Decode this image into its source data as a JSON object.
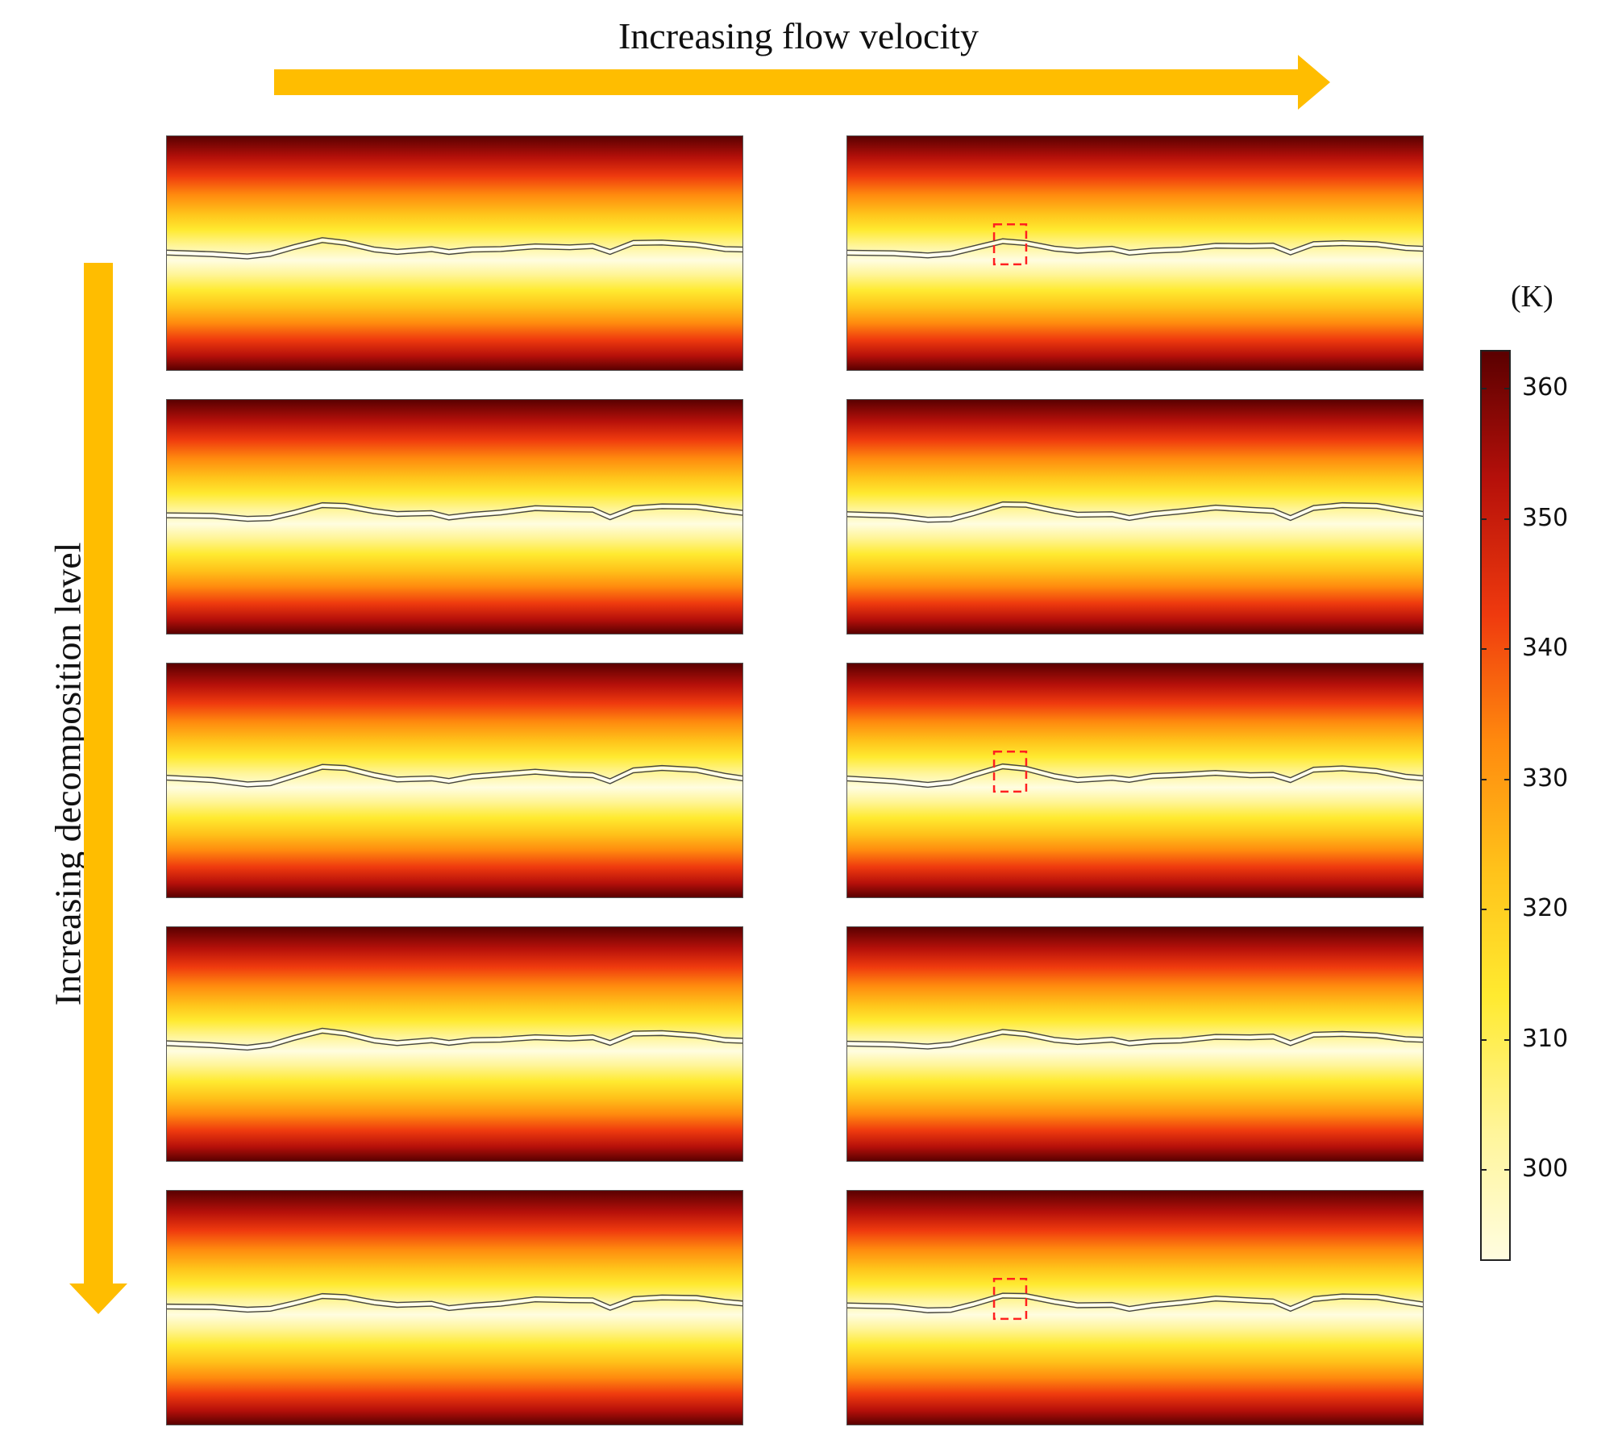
{
  "figure": {
    "top_label": "Increasing flow velocity",
    "left_label": "Increasing decomposition level"
  },
  "colorbar": {
    "unit": "(K)",
    "min": 293,
    "max": 363,
    "ticks": [
      "300",
      "310",
      "320",
      "330",
      "340",
      "350",
      "360"
    ],
    "tick_values": [
      300,
      310,
      320,
      330,
      340,
      350,
      360
    ],
    "colors": [
      "#fffde0",
      "#fff59a",
      "#ffea30",
      "#ffc21a",
      "#ff8a0e",
      "#ef3a0e",
      "#b5100a",
      "#5a0000"
    ]
  },
  "colors": {
    "arrow": "#ffbd00",
    "highlight_box": "#ff2020",
    "fracture_line": "#444444"
  },
  "panels": [
    {
      "row": 1,
      "column": 1,
      "highlight": false
    },
    {
      "row": 1,
      "column": 2,
      "highlight": true
    },
    {
      "row": 2,
      "column": 1,
      "highlight": false
    },
    {
      "row": 2,
      "column": 2,
      "highlight": false
    },
    {
      "row": 3,
      "column": 1,
      "highlight": false
    },
    {
      "row": 3,
      "column": 2,
      "highlight": true
    },
    {
      "row": 4,
      "column": 1,
      "highlight": false
    },
    {
      "row": 4,
      "column": 2,
      "highlight": false
    },
    {
      "row": 5,
      "column": 1,
      "highlight": false
    },
    {
      "row": 5,
      "column": 2,
      "highlight": true
    }
  ]
}
